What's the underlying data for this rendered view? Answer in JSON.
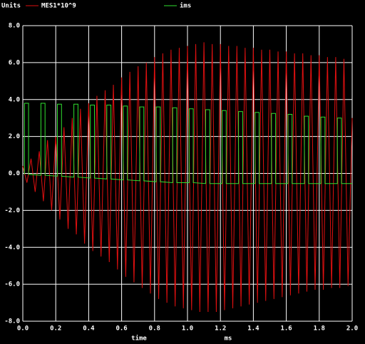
{
  "chart_data": {
    "type": "line",
    "y_label": "Units",
    "x_label": "time",
    "x_unit": "ms",
    "xlim": [
      0,
      2
    ],
    "ylim": [
      -8,
      8
    ],
    "grid": true,
    "xticks": [
      {
        "value": 0,
        "label": "0.0"
      },
      {
        "value": 0.2,
        "label": "0.2"
      },
      {
        "value": 0.4,
        "label": "0.4"
      },
      {
        "value": 0.6,
        "label": "0.6"
      },
      {
        "value": 0.8,
        "label": "0.8"
      },
      {
        "value": 1.0,
        "label": "1.0"
      },
      {
        "value": 1.2,
        "label": "1.2"
      },
      {
        "value": 1.4,
        "label": "1.4"
      },
      {
        "value": 1.6,
        "label": "1.6"
      },
      {
        "value": 1.8,
        "label": "1.8"
      },
      {
        "value": 2.0,
        "label": "2.0"
      }
    ],
    "yticks": [
      {
        "value": 8,
        "label": "8.0"
      },
      {
        "value": 6,
        "label": "6.0"
      },
      {
        "value": 4,
        "label": "4.0"
      },
      {
        "value": 2,
        "label": "2.0"
      },
      {
        "value": 0,
        "label": "0.0"
      },
      {
        "value": -2,
        "label": "-2.0"
      },
      {
        "value": -4,
        "label": "-4.0"
      },
      {
        "value": -6,
        "label": "-6.0"
      },
      {
        "value": -8,
        "label": "-8.0"
      }
    ],
    "series": [
      {
        "name": "MES1*10^9",
        "color": "#e01010",
        "x": [
          0,
          0.025,
          0.05,
          0.075,
          0.1,
          0.125,
          0.15,
          0.175,
          0.2,
          0.225,
          0.25,
          0.275,
          0.3,
          0.325,
          0.35,
          0.375,
          0.4,
          0.425,
          0.45,
          0.475,
          0.5,
          0.525,
          0.55,
          0.575,
          0.6,
          0.625,
          0.65,
          0.675,
          0.7,
          0.725,
          0.75,
          0.775,
          0.8,
          0.825,
          0.85,
          0.875,
          0.9,
          0.925,
          0.95,
          0.975,
          1.0,
          1.025,
          1.05,
          1.075,
          1.1,
          1.125,
          1.15,
          1.175,
          1.2,
          1.225,
          1.25,
          1.275,
          1.3,
          1.325,
          1.35,
          1.375,
          1.4,
          1.425,
          1.45,
          1.475,
          1.5,
          1.525,
          1.55,
          1.575,
          1.6,
          1.625,
          1.65,
          1.675,
          1.7,
          1.725,
          1.75,
          1.775,
          1.8,
          1.825,
          1.85,
          1.875,
          1.9,
          1.925,
          1.95,
          1.975,
          2.0
        ],
        "values": [
          0.4,
          -0.5,
          0.8,
          -1.0,
          1.2,
          -1.5,
          1.8,
          -2.0,
          2.0,
          -2.5,
          2.5,
          -3.0,
          3.0,
          -3.3,
          3.5,
          -3.8,
          3.8,
          -4.2,
          4.2,
          -4.5,
          4.5,
          -4.8,
          4.8,
          -5.2,
          5.2,
          -5.6,
          5.5,
          -5.9,
          5.8,
          -6.2,
          6.0,
          -6.5,
          6.3,
          -6.8,
          6.5,
          -7.0,
          6.7,
          -7.2,
          6.8,
          -7.3,
          6.9,
          -7.4,
          7.0,
          -7.5,
          7.1,
          -7.5,
          7.0,
          -7.5,
          7.0,
          -7.4,
          6.9,
          -7.3,
          6.9,
          -7.2,
          6.8,
          -7.1,
          6.8,
          -7.0,
          6.7,
          -6.9,
          6.7,
          -6.8,
          6.6,
          -6.7,
          6.6,
          -6.6,
          6.5,
          -6.5,
          6.5,
          -6.4,
          6.4,
          -6.3,
          6.4,
          -6.3,
          6.3,
          -6.2,
          6.3,
          -6.2,
          6.2,
          -6.1,
          3.0
        ]
      },
      {
        "name": "ims",
        "color": "#30e030",
        "x": [
          0.01,
          0.01,
          0.035,
          0.035,
          0.11,
          0.11,
          0.135,
          0.135,
          0.21,
          0.21,
          0.235,
          0.235,
          0.31,
          0.31,
          0.335,
          0.335,
          0.41,
          0.41,
          0.435,
          0.435,
          0.51,
          0.51,
          0.535,
          0.535,
          0.61,
          0.61,
          0.635,
          0.635,
          0.71,
          0.71,
          0.735,
          0.735,
          0.81,
          0.81,
          0.835,
          0.835,
          0.91,
          0.91,
          0.935,
          0.935,
          1.01,
          1.01,
          1.035,
          1.035,
          1.11,
          1.11,
          1.135,
          1.135,
          1.21,
          1.21,
          1.235,
          1.235,
          1.31,
          1.31,
          1.335,
          1.335,
          1.41,
          1.41,
          1.435,
          1.435,
          1.51,
          1.51,
          1.535,
          1.535,
          1.61,
          1.61,
          1.635,
          1.635,
          1.71,
          1.71,
          1.735,
          1.735,
          1.81,
          1.81,
          1.835,
          1.835,
          1.91,
          1.91,
          1.935,
          1.935,
          2.0
        ],
        "values": [
          -0.05,
          3.8,
          3.8,
          -0.05,
          -0.1,
          3.8,
          3.8,
          -0.1,
          -0.15,
          3.75,
          3.75,
          -0.15,
          -0.2,
          3.75,
          3.75,
          -0.2,
          -0.25,
          3.7,
          3.7,
          -0.25,
          -0.3,
          3.7,
          3.7,
          -0.3,
          -0.35,
          3.65,
          3.65,
          -0.35,
          -0.4,
          3.6,
          3.6,
          -0.4,
          -0.45,
          3.6,
          3.6,
          -0.45,
          -0.5,
          3.55,
          3.55,
          -0.5,
          -0.5,
          3.5,
          3.5,
          -0.5,
          -0.55,
          3.45,
          3.45,
          -0.55,
          -0.55,
          3.4,
          3.4,
          -0.55,
          -0.55,
          3.35,
          3.35,
          -0.55,
          -0.55,
          3.3,
          3.3,
          -0.55,
          -0.55,
          3.25,
          3.25,
          -0.55,
          -0.55,
          3.2,
          3.2,
          -0.55,
          -0.55,
          3.1,
          3.1,
          -0.55,
          -0.55,
          3.05,
          3.05,
          -0.55,
          -0.55,
          3.0,
          3.0,
          -0.55,
          -0.55
        ]
      }
    ]
  }
}
